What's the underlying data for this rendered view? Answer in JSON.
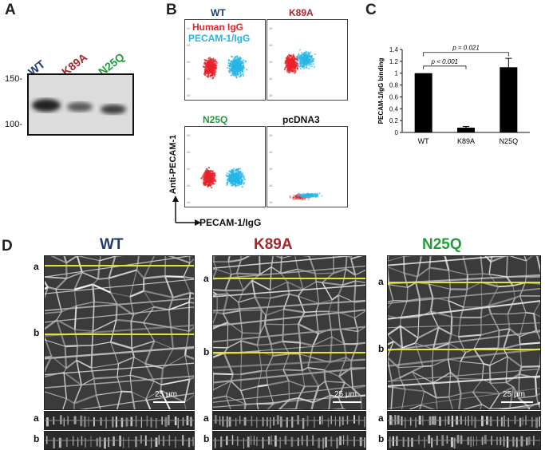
{
  "panels": {
    "A": "A",
    "B": "B",
    "C": "C",
    "D": "D"
  },
  "colors": {
    "wt": "#1f3a6e",
    "k89a": "#a8262c",
    "n25q": "#1e9e3a",
    "human_igg": "#e8232c",
    "pecam_igg": "#27b5e6",
    "scan_line": "#e6e03a"
  },
  "panelA": {
    "lanes": [
      "WT",
      "K89A",
      "N25Q"
    ],
    "mw": [
      {
        "label": "150-"
      },
      {
        "label": "100-"
      }
    ]
  },
  "panelB": {
    "legend": {
      "human_igg": "Human IgG",
      "pecam_igg": "PECAM-1/IgG"
    },
    "plots": [
      {
        "title": "WT"
      },
      {
        "title": "K89A"
      },
      {
        "title": "N25Q"
      },
      {
        "title": "pcDNA3"
      }
    ],
    "y_axis": "Anti-PECAM-1",
    "x_axis": "PECAM-1/IgG"
  },
  "chart_data": {
    "type": "bar",
    "title": "",
    "ylabel": "PECAM-1/IgG binding",
    "xlabel": "",
    "categories": [
      "WT",
      "K89A",
      "N25Q"
    ],
    "values": [
      1.0,
      0.08,
      1.1
    ],
    "errors": [
      0.0,
      0.02,
      0.15
    ],
    "ylim": [
      0,
      1.4
    ],
    "yticks": [
      "0",
      "0.2",
      "0.4",
      "0.6",
      "0.8",
      "1",
      "1.2",
      "1.4"
    ],
    "annotations": [
      {
        "text": "p < 0.001",
        "from": "WT",
        "to": "K89A"
      },
      {
        "text": "p = 0.021",
        "from": "WT",
        "to": "N25Q"
      }
    ]
  },
  "panelD": {
    "titles": [
      "WT",
      "K89A",
      "N25Q"
    ],
    "scale_label": "25 μm",
    "row_labels": [
      "a",
      "b"
    ]
  }
}
